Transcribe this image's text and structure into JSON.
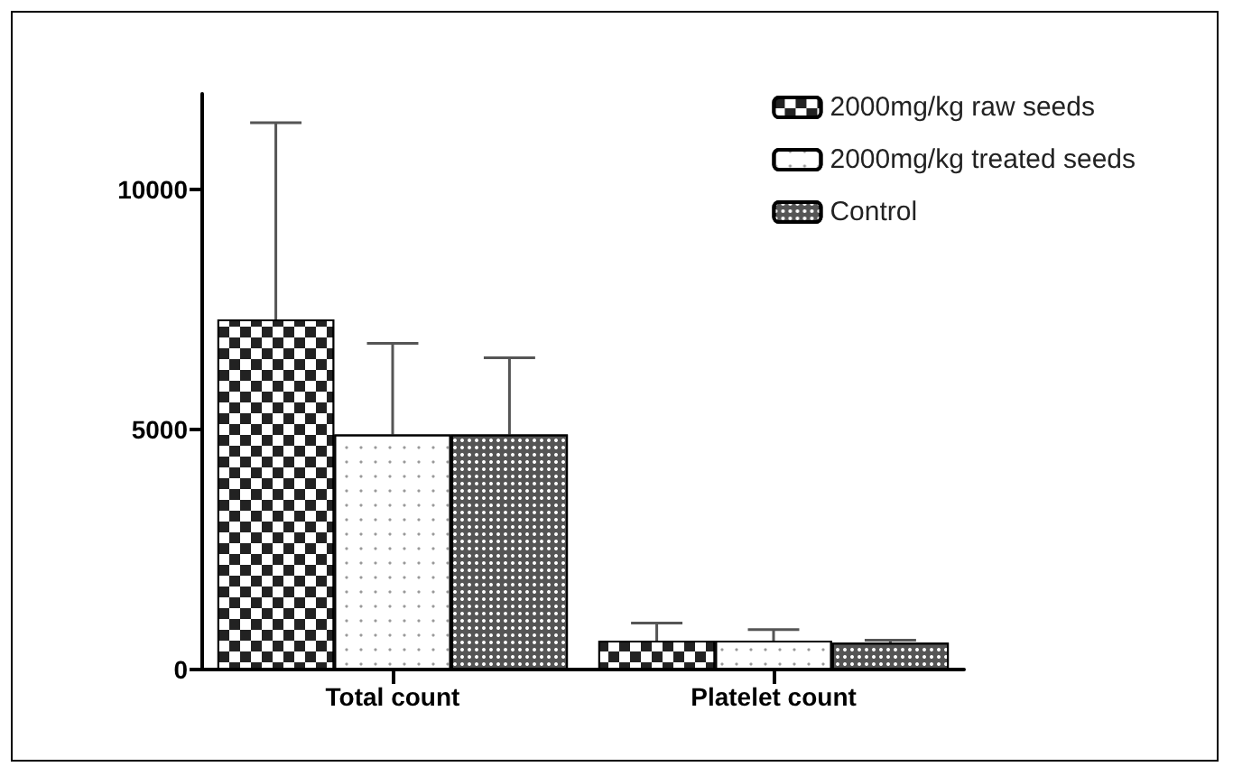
{
  "chart_data": {
    "type": "bar",
    "categories": [
      "Total count",
      "Platelet count"
    ],
    "series": [
      {
        "name": "2000mg/kg raw seeds",
        "color": "#222222",
        "values": [
          7300,
          600
        ],
        "errors": [
          [
            7300,
            11400
          ],
          [
            600,
            970
          ]
        ]
      },
      {
        "name": "2000mg/kg treated seeds",
        "color": "#ffffff",
        "values": [
          4900,
          600
        ],
        "errors": [
          [
            4900,
            6800
          ],
          [
            600,
            830
          ]
        ]
      },
      {
        "name": "Control",
        "color": "#555555",
        "values": [
          4900,
          560
        ],
        "errors": [
          [
            4900,
            6500
          ],
          [
            560,
            610
          ]
        ]
      }
    ],
    "ylim": [
      0,
      12000
    ],
    "yticks": [
      0,
      5000,
      10000
    ],
    "grid": false,
    "legend": "top right"
  }
}
